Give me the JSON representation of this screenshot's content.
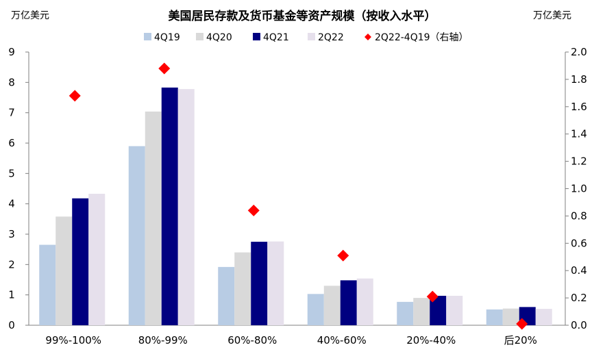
{
  "chart_data": {
    "type": "bar",
    "title": "美国居民存款及货币基金等资产规模（按收入水平）",
    "y_left_unit": "万亿美元",
    "y_right_unit": "万亿美元",
    "categories": [
      "99%-100%",
      "80%-99%",
      "60%-80%",
      "40%-60%",
      "20%-40%",
      "后20%"
    ],
    "series": [
      {
        "name": "4Q19",
        "type": "bar",
        "axis": "left",
        "color": "#b8cce4",
        "values": [
          2.65,
          5.9,
          1.92,
          1.03,
          0.77,
          0.52
        ]
      },
      {
        "name": "4Q20",
        "type": "bar",
        "axis": "left",
        "color": "#d9d9d9",
        "values": [
          3.58,
          7.04,
          2.4,
          1.3,
          0.9,
          0.55
        ]
      },
      {
        "name": "4Q21",
        "type": "bar",
        "axis": "left",
        "color": "#000080",
        "values": [
          4.18,
          7.83,
          2.75,
          1.48,
          0.97,
          0.6
        ]
      },
      {
        "name": "2Q22",
        "type": "bar",
        "axis": "left",
        "color": "#e6e0ec",
        "values": [
          4.33,
          7.78,
          2.76,
          1.54,
          0.97,
          0.54
        ]
      },
      {
        "name": "2Q22-4Q19（右轴）",
        "type": "scatter",
        "marker": "diamond",
        "axis": "right",
        "color": "#ff0000",
        "values": [
          1.68,
          1.88,
          0.84,
          0.51,
          0.21,
          0.01
        ]
      }
    ],
    "y_left": {
      "min": 0,
      "max": 9,
      "ticks": [
        "0",
        "1",
        "2",
        "3",
        "4",
        "5",
        "6",
        "7",
        "8",
        "9"
      ]
    },
    "y_right": {
      "min": 0,
      "max": 2,
      "ticks": [
        "0.0",
        "0.2",
        "0.4",
        "0.6",
        "0.8",
        "1.0",
        "1.2",
        "1.4",
        "1.6",
        "1.8",
        "2.0"
      ]
    },
    "legend_position": "top",
    "grid": false
  }
}
